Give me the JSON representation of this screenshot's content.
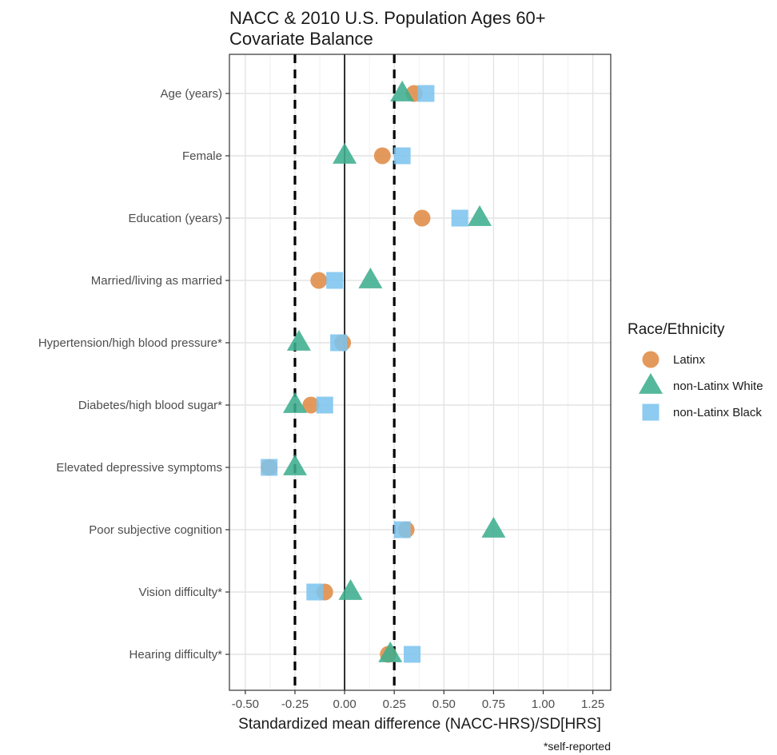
{
  "chart_data": {
    "type": "scatter",
    "title": [
      "NACC & 2010 U.S. Population Ages 60+",
      "Covariate Balance"
    ],
    "xlabel": "Standardized mean difference (NACC-HRS)/SD[HRS]",
    "footnote": "*self-reported",
    "xlim": [
      -0.58,
      1.34
    ],
    "x_ticks": [
      -0.5,
      -0.25,
      0,
      0.25,
      0.5,
      0.75,
      1.0,
      1.25
    ],
    "x_tick_labels": [
      "-0.50",
      "-0.25",
      "0.00",
      "0.25",
      "0.50",
      "0.75",
      "1.00",
      "1.25"
    ],
    "reference_lines": {
      "solid": [
        0
      ],
      "dashed": [
        -0.25,
        0.25
      ]
    },
    "grid": true,
    "legend": {
      "title": "Race/Ethnicity",
      "placement": "right"
    },
    "categories": [
      "Age (years)",
      "Female",
      "Education (years)",
      "Married/living as married",
      "Hypertension/high blood pressure*",
      "Diabetes/high blood sugar*",
      "Elevated depressive symptoms",
      "Poor subjective cognition",
      "Vision difficulty*",
      "Hearing difficulty*"
    ],
    "series": [
      {
        "name": "Latinx",
        "shape": "circle",
        "color": "#E08B45",
        "values": [
          0.35,
          0.19,
          0.39,
          -0.13,
          -0.01,
          -0.17,
          -0.38,
          0.31,
          -0.1,
          0.22
        ]
      },
      {
        "name": "non-Latinx White",
        "shape": "triangle",
        "color": "#3DAE8E",
        "values": [
          0.29,
          0.0,
          0.68,
          0.13,
          -0.23,
          -0.25,
          -0.25,
          0.75,
          0.03,
          0.23
        ]
      },
      {
        "name": "non-Latinx Black",
        "shape": "square",
        "color": "#7DC4EE",
        "values": [
          0.41,
          0.29,
          0.58,
          -0.05,
          -0.03,
          -0.1,
          -0.38,
          0.29,
          -0.15,
          0.34
        ]
      }
    ]
  }
}
